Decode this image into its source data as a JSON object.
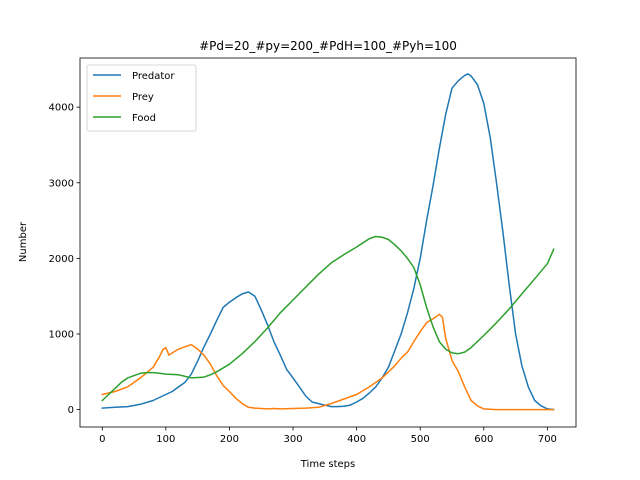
{
  "chart_data": {
    "type": "line",
    "title": "#Pd=20_#py=200_#PdH=100_#Pyh=100",
    "xlabel": "Time steps",
    "ylabel": "Number",
    "xlim": [
      -35,
      745
    ],
    "ylim": [
      -230,
      4650
    ],
    "xticks": [
      0,
      100,
      200,
      300,
      400,
      500,
      600,
      700
    ],
    "yticks": [
      0,
      1000,
      2000,
      3000,
      4000
    ],
    "grid": false,
    "legend_position": "top-left",
    "series": [
      {
        "name": "Predator",
        "color": "#1f77b4",
        "points": [
          [
            0,
            20
          ],
          [
            20,
            30
          ],
          [
            40,
            40
          ],
          [
            60,
            70
          ],
          [
            80,
            120
          ],
          [
            100,
            200
          ],
          [
            110,
            240
          ],
          [
            120,
            300
          ],
          [
            130,
            360
          ],
          [
            140,
            470
          ],
          [
            150,
            640
          ],
          [
            160,
            830
          ],
          [
            170,
            1000
          ],
          [
            180,
            1180
          ],
          [
            190,
            1350
          ],
          [
            200,
            1420
          ],
          [
            210,
            1480
          ],
          [
            220,
            1530
          ],
          [
            230,
            1555
          ],
          [
            240,
            1500
          ],
          [
            250,
            1320
          ],
          [
            260,
            1120
          ],
          [
            270,
            900
          ],
          [
            280,
            720
          ],
          [
            290,
            530
          ],
          [
            300,
            420
          ],
          [
            310,
            300
          ],
          [
            320,
            180
          ],
          [
            330,
            100
          ],
          [
            340,
            80
          ],
          [
            350,
            60
          ],
          [
            360,
            40
          ],
          [
            370,
            40
          ],
          [
            380,
            45
          ],
          [
            390,
            60
          ],
          [
            400,
            100
          ],
          [
            410,
            150
          ],
          [
            420,
            220
          ],
          [
            430,
            300
          ],
          [
            440,
            420
          ],
          [
            450,
            560
          ],
          [
            460,
            780
          ],
          [
            470,
            1000
          ],
          [
            480,
            1280
          ],
          [
            490,
            1600
          ],
          [
            500,
            2000
          ],
          [
            510,
            2500
          ],
          [
            520,
            2950
          ],
          [
            530,
            3450
          ],
          [
            540,
            3900
          ],
          [
            550,
            4250
          ],
          [
            560,
            4350
          ],
          [
            570,
            4420
          ],
          [
            575,
            4440
          ],
          [
            580,
            4410
          ],
          [
            590,
            4300
          ],
          [
            600,
            4050
          ],
          [
            610,
            3600
          ],
          [
            620,
            3000
          ],
          [
            630,
            2350
          ],
          [
            640,
            1650
          ],
          [
            650,
            1000
          ],
          [
            660,
            580
          ],
          [
            670,
            300
          ],
          [
            680,
            120
          ],
          [
            690,
            50
          ],
          [
            700,
            10
          ],
          [
            710,
            0
          ]
        ]
      },
      {
        "name": "Prey",
        "color": "#ff7f0e",
        "points": [
          [
            0,
            200
          ],
          [
            20,
            240
          ],
          [
            40,
            300
          ],
          [
            60,
            420
          ],
          [
            80,
            560
          ],
          [
            90,
            700
          ],
          [
            95,
            790
          ],
          [
            100,
            820
          ],
          [
            105,
            720
          ],
          [
            110,
            750
          ],
          [
            120,
            800
          ],
          [
            130,
            830
          ],
          [
            140,
            860
          ],
          [
            150,
            800
          ],
          [
            160,
            720
          ],
          [
            170,
            600
          ],
          [
            180,
            450
          ],
          [
            190,
            320
          ],
          [
            200,
            240
          ],
          [
            210,
            150
          ],
          [
            220,
            80
          ],
          [
            230,
            30
          ],
          [
            240,
            20
          ],
          [
            250,
            15
          ],
          [
            260,
            10
          ],
          [
            270,
            15
          ],
          [
            280,
            10
          ],
          [
            300,
            15
          ],
          [
            320,
            20
          ],
          [
            340,
            30
          ],
          [
            360,
            80
          ],
          [
            380,
            140
          ],
          [
            400,
            200
          ],
          [
            420,
            300
          ],
          [
            440,
            420
          ],
          [
            460,
            580
          ],
          [
            470,
            680
          ],
          [
            480,
            760
          ],
          [
            490,
            900
          ],
          [
            500,
            1030
          ],
          [
            510,
            1150
          ],
          [
            520,
            1200
          ],
          [
            530,
            1260
          ],
          [
            535,
            1220
          ],
          [
            540,
            950
          ],
          [
            550,
            650
          ],
          [
            560,
            500
          ],
          [
            570,
            300
          ],
          [
            580,
            120
          ],
          [
            590,
            50
          ],
          [
            600,
            10
          ],
          [
            620,
            0
          ],
          [
            650,
            0
          ],
          [
            680,
            0
          ],
          [
            710,
            0
          ]
        ]
      },
      {
        "name": "Food",
        "color": "#2ca02c",
        "points": [
          [
            0,
            120
          ],
          [
            10,
            200
          ],
          [
            20,
            280
          ],
          [
            30,
            360
          ],
          [
            40,
            420
          ],
          [
            50,
            450
          ],
          [
            60,
            480
          ],
          [
            70,
            490
          ],
          [
            80,
            490
          ],
          [
            90,
            480
          ],
          [
            100,
            470
          ],
          [
            120,
            460
          ],
          [
            140,
            420
          ],
          [
            160,
            430
          ],
          [
            170,
            460
          ],
          [
            180,
            500
          ],
          [
            200,
            600
          ],
          [
            220,
            740
          ],
          [
            240,
            900
          ],
          [
            260,
            1080
          ],
          [
            280,
            1280
          ],
          [
            300,
            1450
          ],
          [
            320,
            1620
          ],
          [
            340,
            1790
          ],
          [
            360,
            1940
          ],
          [
            380,
            2050
          ],
          [
            400,
            2150
          ],
          [
            420,
            2260
          ],
          [
            430,
            2290
          ],
          [
            440,
            2280
          ],
          [
            450,
            2250
          ],
          [
            460,
            2180
          ],
          [
            470,
            2100
          ],
          [
            480,
            2000
          ],
          [
            490,
            1880
          ],
          [
            500,
            1650
          ],
          [
            510,
            1350
          ],
          [
            520,
            1100
          ],
          [
            530,
            900
          ],
          [
            540,
            800
          ],
          [
            550,
            750
          ],
          [
            560,
            740
          ],
          [
            570,
            760
          ],
          [
            580,
            820
          ],
          [
            600,
            980
          ],
          [
            620,
            1150
          ],
          [
            640,
            1330
          ],
          [
            660,
            1530
          ],
          [
            680,
            1730
          ],
          [
            700,
            1930
          ],
          [
            710,
            2120
          ]
        ]
      }
    ]
  }
}
